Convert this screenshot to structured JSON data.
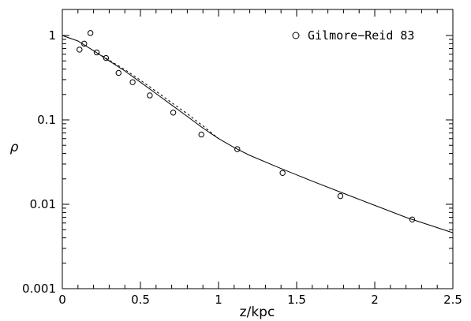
{
  "chart_data": {
    "type": "scatter",
    "title": "",
    "xlabel": "z/kpc",
    "ylabel": "ρ",
    "xlim": [
      0,
      2.5
    ],
    "ylim": [
      0.001,
      1.5
    ],
    "yscale": "log",
    "grid": false,
    "legend_position": "top-right",
    "x_ticks": [
      {
        "value": 0,
        "label": "0"
      },
      {
        "value": 0.5,
        "label": "0.5"
      },
      {
        "value": 1,
        "label": "1"
      },
      {
        "value": 1.5,
        "label": "1.5"
      },
      {
        "value": 2,
        "label": "2"
      },
      {
        "value": 2.5,
        "label": "2.5"
      }
    ],
    "y_ticks": [
      {
        "value": 1,
        "label": "1"
      },
      {
        "value": 0.1,
        "label": "0.1"
      },
      {
        "value": 0.01,
        "label": "0.01"
      },
      {
        "value": 0.001,
        "label": "0.001"
      }
    ],
    "series": [
      {
        "name": "Gilmore−Reid 83",
        "kind": "points",
        "marker": "open-circle",
        "x": [
          0.11,
          0.14,
          0.18,
          0.22,
          0.28,
          0.36,
          0.45,
          0.56,
          0.71,
          0.89,
          1.12,
          1.41,
          1.78,
          2.24
        ],
        "y": [
          0.68,
          0.8,
          1.07,
          0.63,
          0.54,
          0.36,
          0.28,
          0.195,
          0.122,
          0.067,
          0.045,
          0.0235,
          0.0125,
          0.0066
        ]
      },
      {
        "kind": "line",
        "style": "solid",
        "x": [
          0.0,
          0.1,
          0.2,
          0.3,
          0.4,
          0.5,
          0.6,
          0.7,
          0.8,
          0.9,
          1.0,
          1.1,
          1.2,
          1.4,
          1.6,
          1.8,
          2.0,
          2.2,
          2.5
        ],
        "y": [
          1.0,
          0.86,
          0.66,
          0.5,
          0.38,
          0.28,
          0.205,
          0.15,
          0.11,
          0.08,
          0.06,
          0.047,
          0.038,
          0.0265,
          0.0188,
          0.0135,
          0.0097,
          0.007,
          0.0046
        ]
      },
      {
        "kind": "line",
        "style": "dashed",
        "x": [
          0.2,
          0.3,
          0.4,
          0.5,
          0.6,
          0.7,
          0.8,
          0.9,
          1.0
        ],
        "y": [
          0.66,
          0.51,
          0.395,
          0.295,
          0.218,
          0.16,
          0.118,
          0.085,
          0.06
        ]
      }
    ]
  }
}
